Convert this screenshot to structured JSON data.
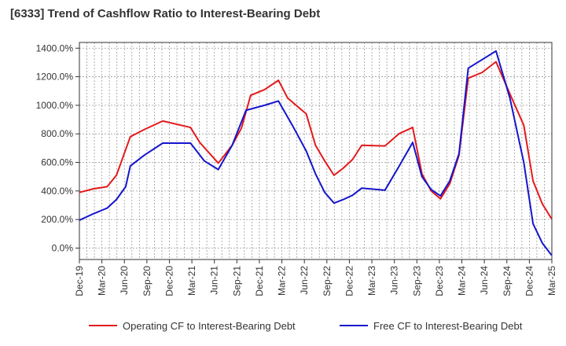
{
  "chart_data": {
    "type": "line",
    "title": "[6333]  Trend of Cashflow Ratio to Interest-Bearing Debt",
    "xlabel": "",
    "ylabel": "",
    "ylim": [
      -80,
      1440
    ],
    "y_ticks": [
      "0.0%",
      "200.0%",
      "400.0%",
      "600.0%",
      "800.0%",
      "1000.0%",
      "1200.0%",
      "1400.0%"
    ],
    "y_tick_values": [
      0,
      200,
      400,
      600,
      800,
      1000,
      1200,
      1400
    ],
    "x_tick_labels": [
      "Dec-19",
      "Mar-20",
      "Jun-20",
      "Sep-20",
      "Dec-20",
      "Mar-21",
      "Jun-21",
      "Sep-21",
      "Dec-21",
      "Mar-22",
      "Jun-22",
      "Sep-22",
      "Dec-22",
      "Mar-23",
      "Jun-23",
      "Sep-23",
      "Dec-23",
      "Mar-24",
      "Jun-24",
      "Sep-24",
      "Dec-24",
      "Mar-25"
    ],
    "x_month_range": [
      0,
      63
    ],
    "grid": true,
    "legend_position": "bottom",
    "series": [
      {
        "name": "Operating CF to Interest-Bearing Debt",
        "color": "#e31a1c",
        "points": [
          [
            0,
            390
          ],
          [
            3,
            415
          ],
          [
            6,
            430
          ],
          [
            8,
            510
          ],
          [
            9,
            600
          ],
          [
            11,
            780
          ],
          [
            14,
            830
          ],
          [
            18,
            890
          ],
          [
            24,
            845
          ],
          [
            26,
            740
          ],
          [
            30,
            595
          ],
          [
            33,
            720
          ],
          [
            35,
            840
          ],
          [
            37,
            1070
          ],
          [
            40,
            1110
          ],
          [
            43,
            1175
          ],
          [
            45,
            1050
          ],
          [
            49,
            940
          ],
          [
            51,
            720
          ],
          [
            53,
            610
          ],
          [
            55,
            510
          ],
          [
            57,
            560
          ],
          [
            59,
            620
          ],
          [
            61,
            720
          ],
          [
            66,
            715
          ],
          [
            69,
            800
          ],
          [
            72,
            845
          ],
          [
            74,
            520
          ],
          [
            76,
            400
          ],
          [
            78,
            345
          ],
          [
            80,
            450
          ],
          [
            82,
            650
          ],
          [
            84,
            1190
          ],
          [
            87,
            1230
          ],
          [
            90,
            1305
          ],
          [
            93,
            1080
          ],
          [
            96,
            860
          ],
          [
            98,
            470
          ],
          [
            100,
            310
          ],
          [
            102,
            205
          ]
        ]
      },
      {
        "name": "Free CF to Interest-Bearing Debt",
        "color": "#1515cc",
        "points": [
          [
            0,
            195
          ],
          [
            3,
            240
          ],
          [
            6,
            280
          ],
          [
            8,
            340
          ],
          [
            10,
            430
          ],
          [
            11,
            575
          ],
          [
            14,
            650
          ],
          [
            18,
            735
          ],
          [
            24,
            735
          ],
          [
            27,
            610
          ],
          [
            30,
            550
          ],
          [
            33,
            720
          ],
          [
            36,
            965
          ],
          [
            40,
            1000
          ],
          [
            43,
            1030
          ],
          [
            46,
            860
          ],
          [
            49,
            680
          ],
          [
            51,
            520
          ],
          [
            53,
            390
          ],
          [
            55,
            315
          ],
          [
            57,
            340
          ],
          [
            59,
            370
          ],
          [
            61,
            420
          ],
          [
            66,
            405
          ],
          [
            69,
            570
          ],
          [
            72,
            740
          ],
          [
            74,
            500
          ],
          [
            76,
            410
          ],
          [
            78,
            365
          ],
          [
            80,
            470
          ],
          [
            82,
            660
          ],
          [
            84,
            1260
          ],
          [
            87,
            1320
          ],
          [
            90,
            1380
          ],
          [
            93,
            1050
          ],
          [
            96,
            600
          ],
          [
            98,
            170
          ],
          [
            100,
            35
          ],
          [
            102,
            -50
          ]
        ]
      }
    ]
  }
}
